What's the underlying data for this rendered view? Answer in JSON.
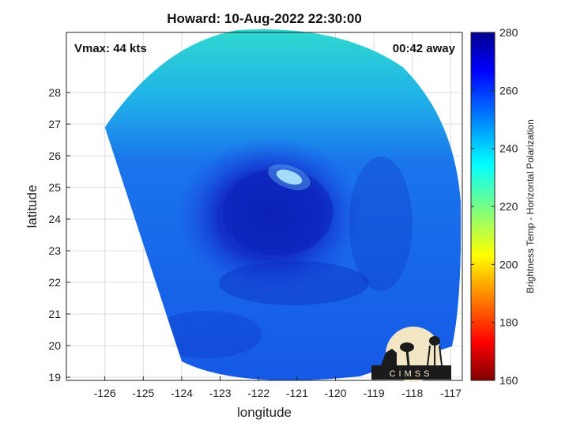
{
  "title": "Howard: 10-Aug-2022 22:30:00",
  "vmax_label": "Vmax: 44 kts",
  "time_away_label": "00:42 away",
  "logo_text": "CIMSS",
  "colors": {
    "frame": "#222222",
    "grid": "#dddddd",
    "swath_base": "#1a55e8",
    "eye_dark": "#0c22b8",
    "warm_spot": "#d0f4ff"
  },
  "chart_data": {
    "type": "heatmap",
    "xlabel": "longitude",
    "ylabel": "latitude",
    "colorbar_label": "Brightness Temp - Horizontal Polarization",
    "xlim": [
      -127,
      -116.7
    ],
    "ylim": [
      18.9,
      29.9
    ],
    "x_ticks": [
      -126,
      -125,
      -124,
      -123,
      -122,
      -121,
      -120,
      -119,
      -118,
      -117
    ],
    "y_ticks": [
      19,
      20,
      21,
      22,
      23,
      24,
      25,
      26,
      27,
      28
    ],
    "colorbar_range": [
      160,
      280
    ],
    "colorbar_ticks": [
      160,
      180,
      200,
      220,
      240,
      260,
      280
    ],
    "grid": true,
    "storm_center": {
      "lon": -121.7,
      "lat": 24.1
    },
    "swath_corners": {
      "northwest": [
        -126,
        26.9
      ],
      "southwest": [
        -124,
        19.5
      ]
    }
  }
}
